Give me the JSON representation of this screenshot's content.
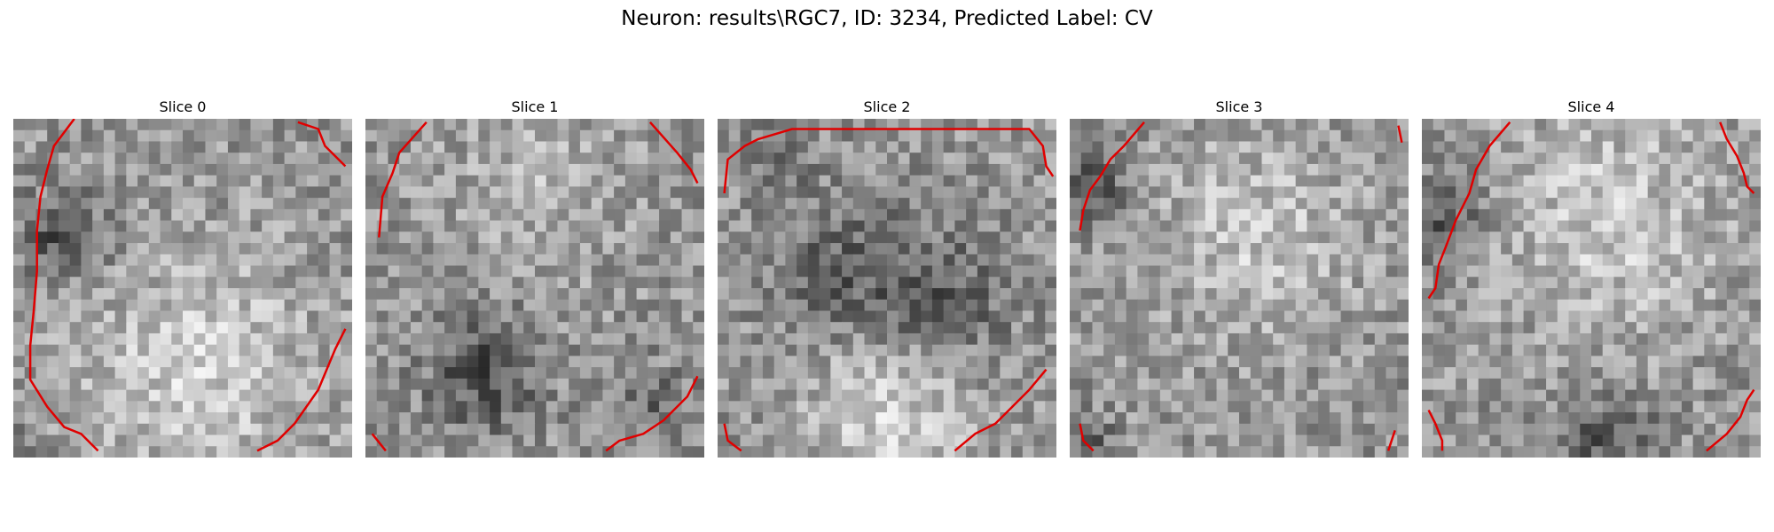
{
  "figure": {
    "title": "Neuron: results\\RGC7, ID: 3234, Predicted Label: CV"
  },
  "slices": [
    {
      "label": "Slice 0",
      "seed": 11,
      "blobs": [
        [
          0.15,
          0.35,
          0.12,
          -80
        ],
        [
          0.55,
          0.75,
          0.35,
          55
        ],
        [
          0.0,
          1.0,
          0.1,
          -30
        ]
      ],
      "contour": [
        [
          0.18,
          0.0
        ],
        [
          0.12,
          0.08
        ],
        [
          0.1,
          0.15
        ],
        [
          0.08,
          0.23
        ],
        [
          0.07,
          0.33
        ],
        [
          0.07,
          0.45
        ],
        [
          0.06,
          0.57
        ],
        [
          0.05,
          0.67
        ],
        [
          0.05,
          0.77
        ],
        [
          0.1,
          0.85
        ],
        [
          0.15,
          0.91
        ],
        [
          0.2,
          0.93
        ],
        [
          0.25,
          0.98
        ]
      ],
      "contour2": [
        [
          0.72,
          0.98
        ],
        [
          0.78,
          0.95
        ],
        [
          0.83,
          0.9
        ],
        [
          0.9,
          0.8
        ],
        [
          0.95,
          0.68
        ],
        [
          0.98,
          0.62
        ]
      ],
      "contour3": [
        [
          0.84,
          0.01
        ],
        [
          0.9,
          0.03
        ],
        [
          0.92,
          0.08
        ],
        [
          0.98,
          0.14
        ]
      ]
    },
    {
      "label": "Slice 1",
      "seed": 23,
      "blobs": [
        [
          0.35,
          0.75,
          0.16,
          -75
        ],
        [
          0.5,
          0.2,
          0.25,
          30
        ],
        [
          0.85,
          0.85,
          0.12,
          -40
        ]
      ],
      "contour": [
        [
          0.18,
          0.01
        ],
        [
          0.1,
          0.1
        ],
        [
          0.08,
          0.16
        ],
        [
          0.05,
          0.23
        ],
        [
          0.04,
          0.35
        ]
      ],
      "contour2": [
        [
          0.71,
          0.98
        ],
        [
          0.75,
          0.95
        ],
        [
          0.82,
          0.93
        ],
        [
          0.88,
          0.89
        ],
        [
          0.95,
          0.82
        ],
        [
          0.98,
          0.76
        ]
      ],
      "contour3": [
        [
          0.84,
          0.01
        ],
        [
          0.92,
          0.1
        ],
        [
          0.96,
          0.15
        ],
        [
          0.98,
          0.19
        ]
      ],
      "contour4": [
        [
          0.02,
          0.93
        ],
        [
          0.06,
          0.98
        ]
      ]
    },
    {
      "label": "Slice 2",
      "seed": 37,
      "blobs": [
        [
          0.35,
          0.45,
          0.22,
          -50
        ],
        [
          0.65,
          0.55,
          0.2,
          -60
        ],
        [
          0.5,
          0.85,
          0.25,
          60
        ],
        [
          0.2,
          0.1,
          0.1,
          -30
        ]
      ],
      "contour": [
        [
          0.02,
          0.22
        ],
        [
          0.03,
          0.12
        ],
        [
          0.08,
          0.08
        ],
        [
          0.12,
          0.06
        ],
        [
          0.22,
          0.03
        ],
        [
          0.92,
          0.03
        ],
        [
          0.96,
          0.08
        ],
        [
          0.97,
          0.14
        ],
        [
          0.99,
          0.17
        ]
      ],
      "contour2": [
        [
          0.7,
          0.98
        ],
        [
          0.76,
          0.93
        ],
        [
          0.82,
          0.9
        ],
        [
          0.87,
          0.85
        ],
        [
          0.92,
          0.8
        ],
        [
          0.97,
          0.74
        ]
      ],
      "contour3": [
        [
          0.02,
          0.9
        ],
        [
          0.03,
          0.95
        ],
        [
          0.07,
          0.98
        ]
      ]
    },
    {
      "label": "Slice 3",
      "seed": 53,
      "blobs": [
        [
          0.06,
          0.2,
          0.1,
          -70
        ],
        [
          0.55,
          0.35,
          0.3,
          45
        ],
        [
          0.05,
          0.95,
          0.08,
          -50
        ]
      ],
      "contour": [
        [
          0.22,
          0.01
        ],
        [
          0.16,
          0.08
        ],
        [
          0.12,
          0.12
        ],
        [
          0.09,
          0.17
        ],
        [
          0.06,
          0.21
        ],
        [
          0.04,
          0.27
        ],
        [
          0.03,
          0.33
        ]
      ],
      "contour2": [
        [
          0.96,
          0.92
        ],
        [
          0.94,
          0.98
        ]
      ],
      "contour3": [
        [
          0.97,
          0.02
        ],
        [
          0.98,
          0.07
        ]
      ],
      "contour4": [
        [
          0.03,
          0.9
        ],
        [
          0.04,
          0.95
        ],
        [
          0.07,
          0.98
        ]
      ]
    },
    {
      "label": "Slice 4",
      "seed": 71,
      "blobs": [
        [
          0.06,
          0.3,
          0.12,
          -70
        ],
        [
          0.55,
          0.3,
          0.35,
          50
        ],
        [
          0.55,
          0.95,
          0.14,
          -60
        ]
      ],
      "contour": [
        [
          0.26,
          0.01
        ],
        [
          0.2,
          0.08
        ],
        [
          0.16,
          0.15
        ],
        [
          0.14,
          0.22
        ],
        [
          0.1,
          0.3
        ],
        [
          0.07,
          0.38
        ],
        [
          0.05,
          0.43
        ],
        [
          0.04,
          0.5
        ],
        [
          0.02,
          0.53
        ]
      ],
      "contour2": [
        [
          0.84,
          0.98
        ],
        [
          0.9,
          0.93
        ],
        [
          0.94,
          0.88
        ],
        [
          0.96,
          0.83
        ],
        [
          0.98,
          0.8
        ]
      ],
      "contour3": [
        [
          0.88,
          0.01
        ],
        [
          0.9,
          0.06
        ],
        [
          0.93,
          0.11
        ],
        [
          0.95,
          0.16
        ],
        [
          0.96,
          0.2
        ],
        [
          0.98,
          0.22
        ]
      ],
      "contour4": [
        [
          0.02,
          0.86
        ],
        [
          0.04,
          0.9
        ],
        [
          0.06,
          0.95
        ],
        [
          0.06,
          0.98
        ]
      ]
    }
  ],
  "style": {
    "contour_color": "#e00000",
    "grid": 30
  }
}
